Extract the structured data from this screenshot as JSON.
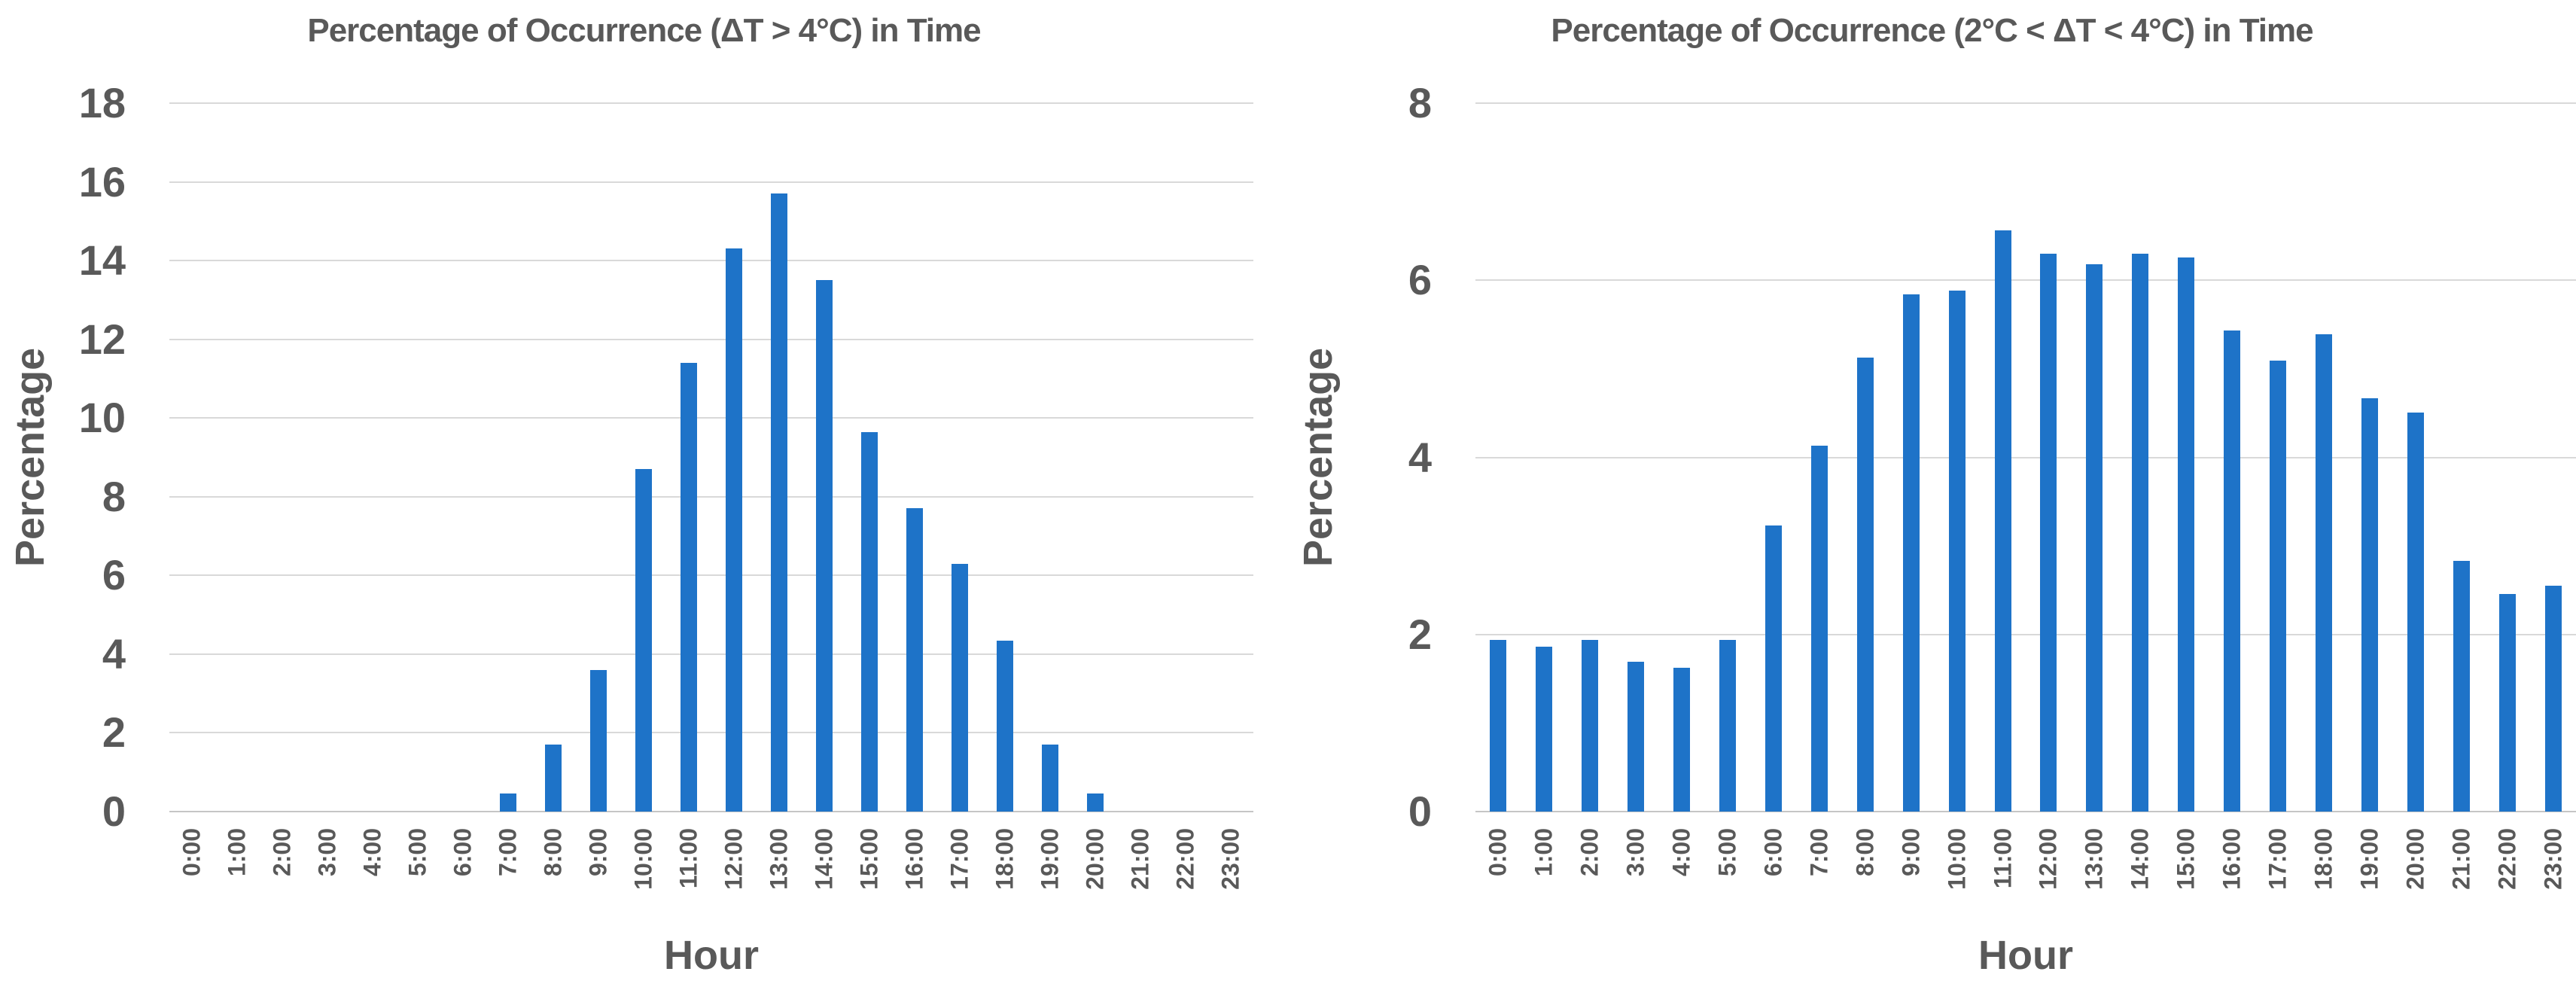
{
  "page": {
    "background": "#ffffff"
  },
  "styles": {
    "bar_color": "#1E73C8",
    "text_color": "#595959",
    "gridline_color": "#D9D9D9",
    "axis_line_color": "#C6C6C6"
  },
  "chart_data": [
    {
      "type": "bar",
      "title": "Percentage of Occurrence (ΔT > 4°C) in Time",
      "xlabel": "Hour",
      "ylabel": "Percentage",
      "ylim": [
        0,
        18
      ],
      "ytick_step": 2,
      "ytick_labels": [
        0,
        2,
        4,
        6,
        8,
        10,
        12,
        14,
        16,
        18
      ],
      "grid": true,
      "legend": false,
      "categories": [
        "0:00",
        "1:00",
        "2:00",
        "3:00",
        "4:00",
        "5:00",
        "6:00",
        "7:00",
        "8:00",
        "9:00",
        "10:00",
        "11:00",
        "12:00",
        "13:00",
        "14:00",
        "15:00",
        "16:00",
        "17:00",
        "18:00",
        "19:00",
        "20:00",
        "21:00",
        "22:00",
        "23:00"
      ],
      "values": [
        0,
        0,
        0,
        0,
        0,
        0,
        0,
        0.45,
        1.7,
        3.6,
        8.7,
        11.4,
        14.3,
        15.7,
        13.5,
        9.65,
        7.7,
        6.3,
        4.35,
        1.7,
        0.45,
        0,
        0,
        0
      ]
    },
    {
      "type": "bar",
      "title": "Percentage of Occurrence (2°C < ΔT < 4°C) in Time",
      "xlabel": "Hour",
      "ylabel": "Percentage",
      "ylim": [
        0,
        8
      ],
      "ytick_step": 2,
      "ytick_labels": [
        0,
        2,
        4,
        6,
        8
      ],
      "grid": true,
      "legend": false,
      "categories": [
        "0:00",
        "1:00",
        "2:00",
        "3:00",
        "4:00",
        "5:00",
        "6:00",
        "7:00",
        "8:00",
        "9:00",
        "10:00",
        "11:00",
        "12:00",
        "13:00",
        "14:00",
        "15:00",
        "16:00",
        "17:00",
        "18:00",
        "19:00",
        "20:00",
        "21:00",
        "22:00",
        "23:00"
      ],
      "values": [
        1.94,
        1.86,
        1.94,
        1.69,
        1.62,
        1.94,
        3.23,
        4.13,
        5.13,
        5.84,
        5.88,
        6.56,
        6.3,
        6.18,
        6.3,
        6.26,
        5.43,
        5.09,
        5.39,
        4.67,
        4.51,
        2.83,
        2.46,
        2.55
      ]
    }
  ]
}
